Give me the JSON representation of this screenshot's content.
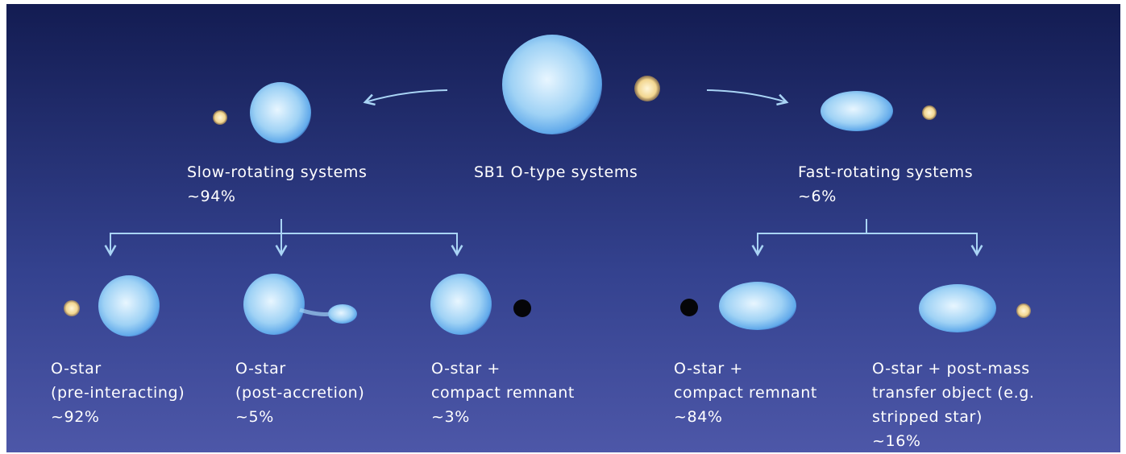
{
  "nodes": [
    {
      "label": [
        "SB1 O-type systems"
      ]
    },
    {
      "label": [
        "Slow-rotating systems"
      ],
      "share": "~94%"
    },
    {
      "label": [
        "Fast-rotating systems"
      ],
      "share": "~6%"
    },
    {
      "label": [
        "O-star",
        "(pre-interacting)"
      ],
      "share": "~92%"
    },
    {
      "label": [
        "O-star",
        "(post-accretion)"
      ],
      "share": "~5%"
    },
    {
      "label": [
        "O-star +",
        "compact remnant"
      ],
      "share": "~3%"
    },
    {
      "label": [
        "O-star +",
        "compact remnant"
      ],
      "share": "~84%"
    },
    {
      "label": [
        "O-star + post-mass",
        "transfer object (e.g.",
        "stripped star)"
      ],
      "share": "~16%"
    }
  ]
}
